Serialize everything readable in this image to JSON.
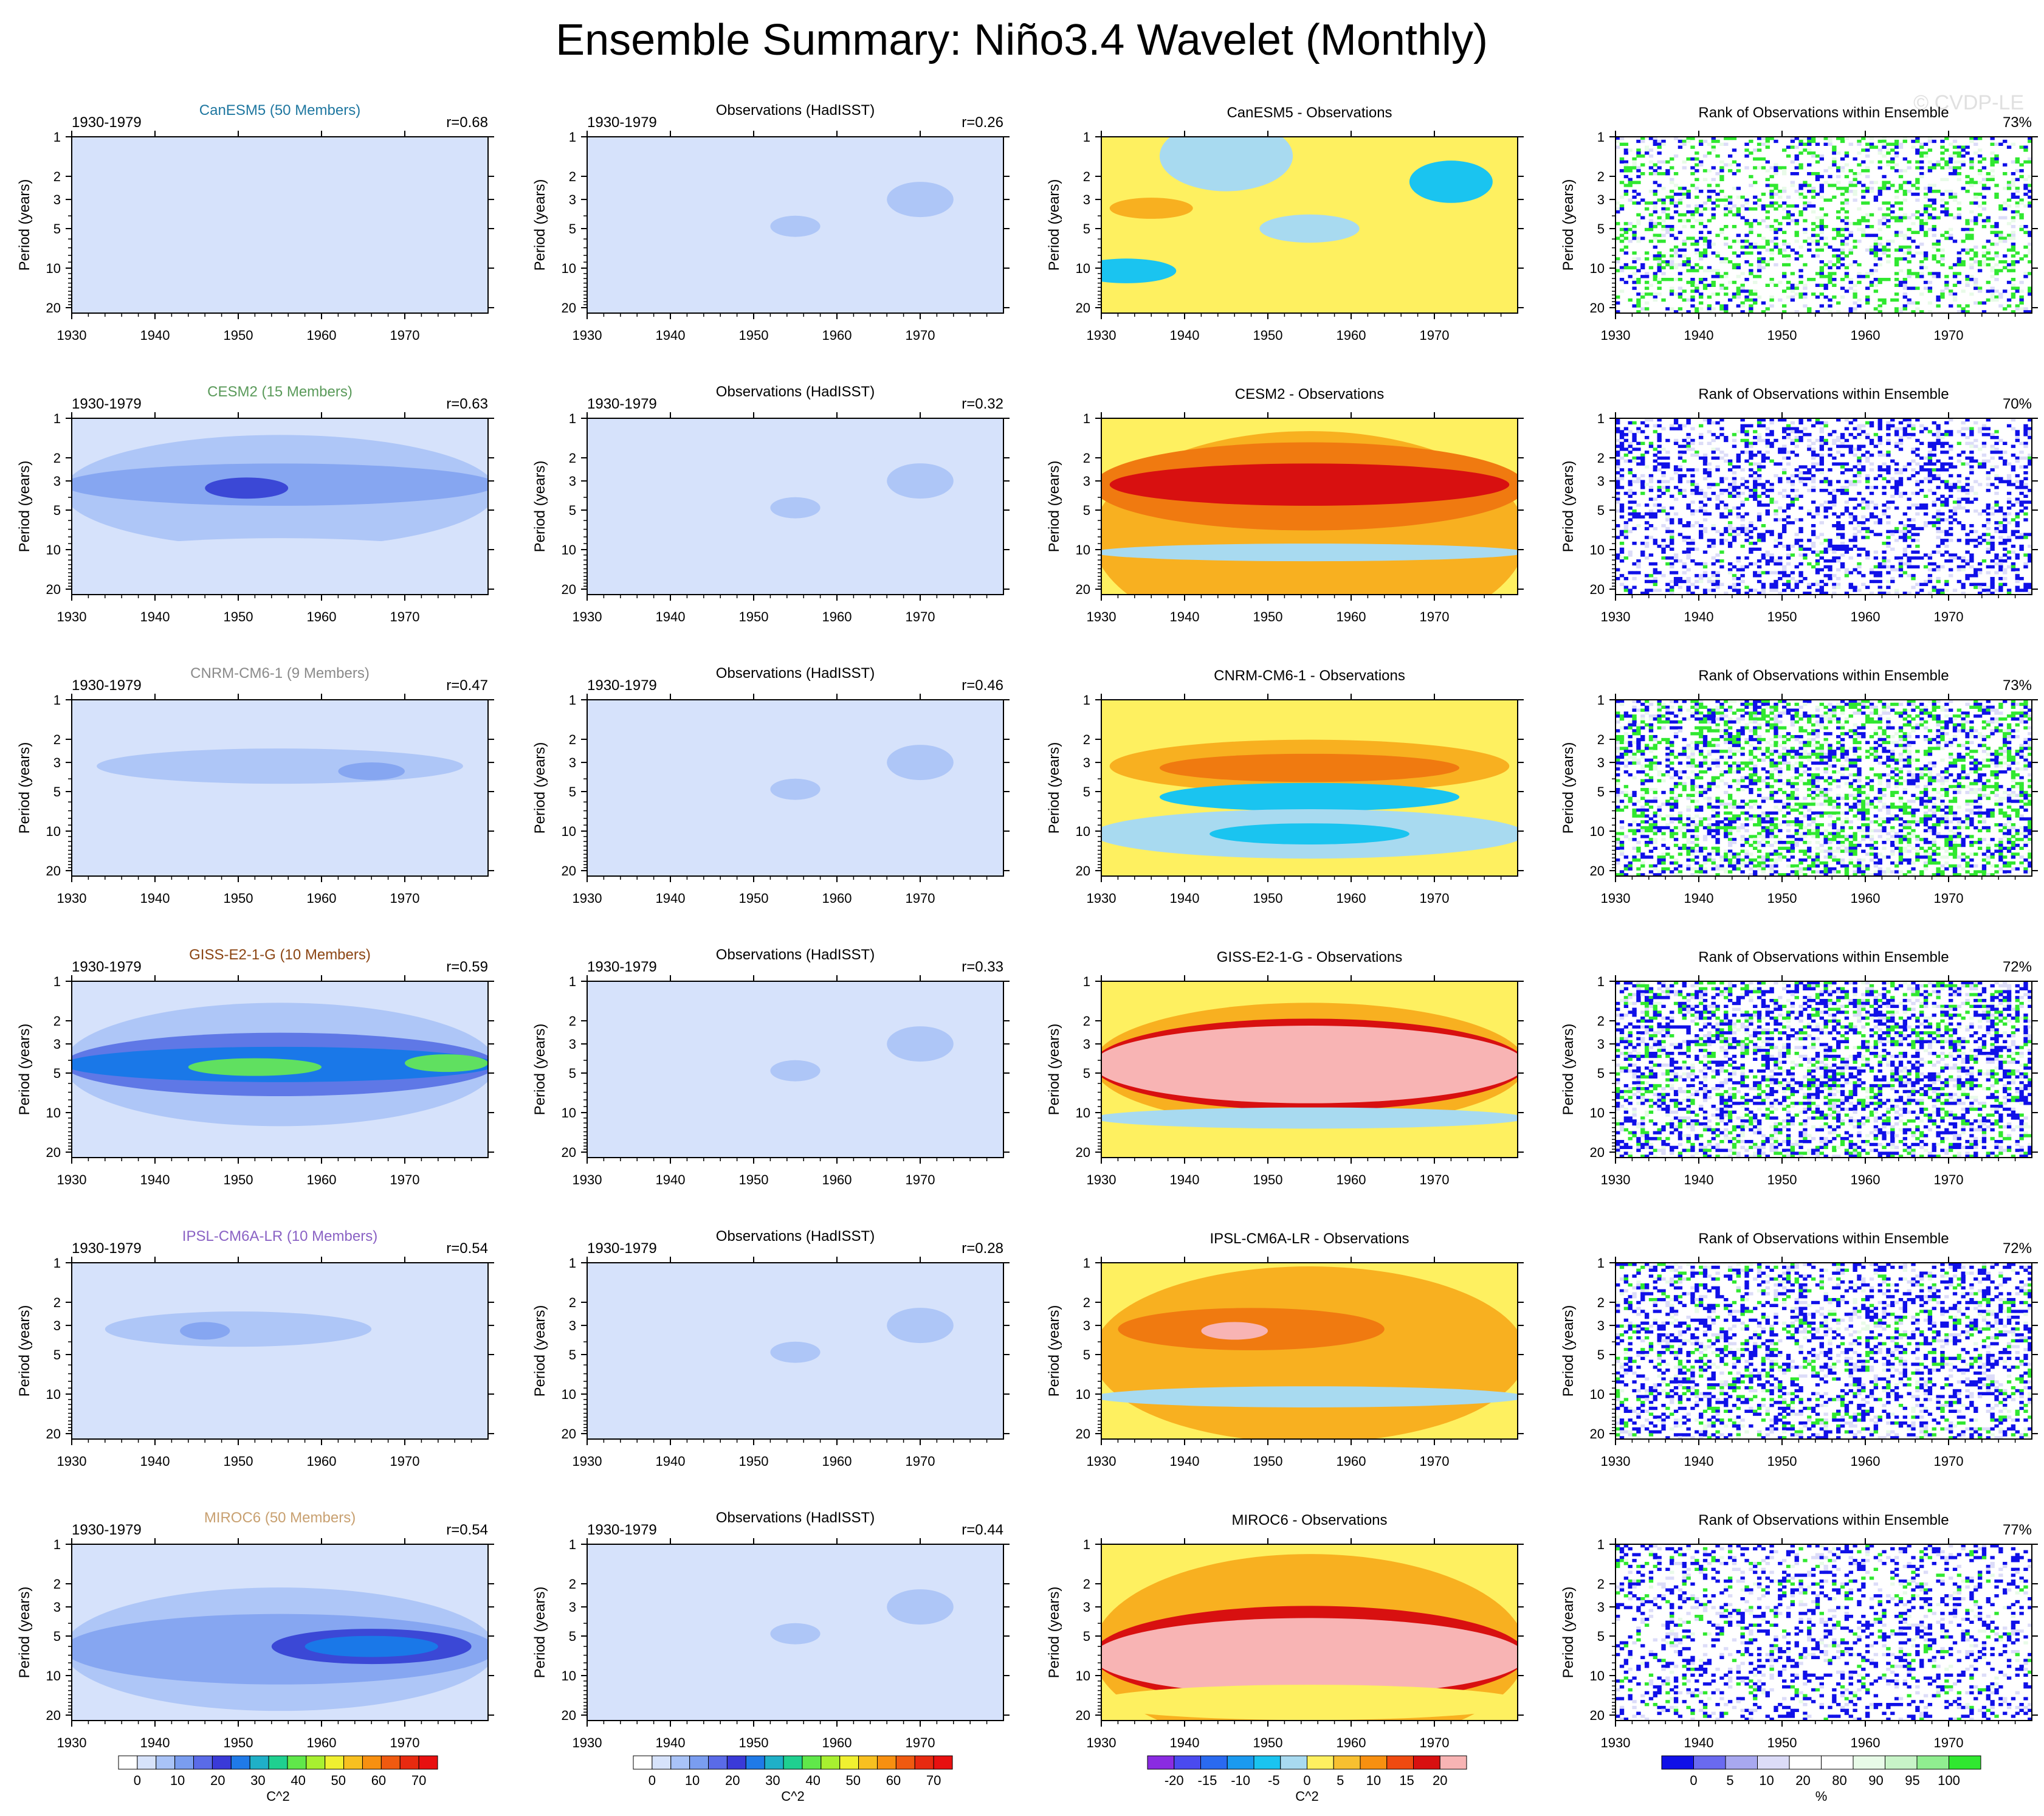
{
  "figure": {
    "title": "Ensemble Summary: Niño3.4 Wavelet (Monthly)",
    "watermark": "© CVDP-LE",
    "ylabel": "Period (years)",
    "period_ticks": [
      "1",
      "2",
      "3",
      "5",
      "10",
      "20"
    ],
    "x_ticks": [
      "1930",
      "1940",
      "1950",
      "1960",
      "1970"
    ]
  },
  "chart_data": {
    "type": "heatmap",
    "x_range": [
      1930,
      1980
    ],
    "y_range_period_years": [
      1,
      22
    ],
    "y_scale": "log (inverted)",
    "rows": [
      {
        "model": "CanESM5 (50 Members)",
        "model_color": "#1f77a0",
        "period": "1930-1979",
        "ens_r": "r=0.68",
        "obs_r": "r=0.26",
        "diff_title": "CanESM5 - Observations",
        "rank_pct": "73%",
        "ens_features": [
          {
            "center_year": 1955,
            "period": 4.5,
            "half_width_years": 26,
            "spread": 0.3,
            "level": 1
          },
          {
            "center_year": 1950,
            "period": 10.5,
            "half_width_years": 14,
            "spread": 0.06,
            "level": 1
          }
        ],
        "diff_features": [
          {
            "center_year": 1955,
            "period": 6,
            "half_width_years": 25,
            "spread": 0.38,
            "level": 1
          },
          {
            "center_year": 1955,
            "period": 5,
            "half_width_years": 6,
            "spread": 0.08,
            "level": -1
          },
          {
            "center_year": 1933,
            "period": 10.5,
            "half_width_years": 6,
            "spread": 0.07,
            "level": -2
          },
          {
            "center_year": 1972,
            "period": 2.2,
            "half_width_years": 5,
            "spread": 0.12,
            "level": -2
          },
          {
            "center_year": 1936,
            "period": 3.5,
            "half_width_years": 5,
            "spread": 0.06,
            "level": 2
          },
          {
            "center_year": 1945,
            "period": 1.4,
            "half_width_years": 8,
            "spread": 0.2,
            "level": -1
          }
        ],
        "rank_green_frac": 0.18,
        "rank_blue_frac": 0.12
      },
      {
        "model": "CESM2 (15 Members)",
        "model_color": "#5a9a5a",
        "period": "1930-1979",
        "ens_r": "r=0.63",
        "obs_r": "r=0.32",
        "diff_title": "CESM2 - Observations",
        "rank_pct": "70%",
        "ens_features": [
          {
            "center_year": 1955,
            "period": 3.6,
            "half_width_years": 26,
            "spread": 0.32,
            "level": 2
          },
          {
            "center_year": 1955,
            "period": 3.2,
            "half_width_years": 26,
            "spread": 0.12,
            "level": 3
          },
          {
            "center_year": 1951,
            "period": 3.4,
            "half_width_years": 5,
            "spread": 0.06,
            "level": 5
          },
          {
            "center_year": 1955,
            "period": 13,
            "half_width_years": 26,
            "spread": 0.15,
            "level": 1
          }
        ],
        "diff_features": [
          {
            "center_year": 1955,
            "period": 8,
            "half_width_years": 26,
            "spread": 0.6,
            "level": 2
          },
          {
            "center_year": 1955,
            "period": 3.3,
            "half_width_years": 26,
            "spread": 0.25,
            "level": 3
          },
          {
            "center_year": 1955,
            "period": 3.2,
            "half_width_years": 24,
            "spread": 0.12,
            "level": 4
          },
          {
            "center_year": 1955,
            "period": 10.5,
            "half_width_years": 26,
            "spread": 0.05,
            "level": -1
          }
        ],
        "rank_green_frac": 0.03,
        "rank_blue_frac": 0.3
      },
      {
        "model": "CNRM-CM6-1 (9 Members)",
        "model_color": "#8a8a8a",
        "period": "1930-1979",
        "ens_r": "r=0.47",
        "obs_r": "r=0.46",
        "diff_title": "CNRM-CM6-1 - Observations",
        "rank_pct": "73%",
        "ens_features": [
          {
            "center_year": 1955,
            "period": 3.4,
            "half_width_years": 26,
            "spread": 0.28,
            "level": 1
          },
          {
            "center_year": 1955,
            "period": 3.2,
            "half_width_years": 22,
            "spread": 0.1,
            "level": 2
          },
          {
            "center_year": 1966,
            "period": 3.5,
            "half_width_years": 4,
            "spread": 0.05,
            "level": 3
          }
        ],
        "diff_features": [
          {
            "center_year": 1955,
            "period": 3.2,
            "half_width_years": 24,
            "spread": 0.15,
            "level": 2
          },
          {
            "center_year": 1955,
            "period": 3.3,
            "half_width_years": 18,
            "spread": 0.08,
            "level": 3
          },
          {
            "center_year": 1955,
            "period": 5.5,
            "half_width_years": 18,
            "spread": 0.08,
            "level": -2
          },
          {
            "center_year": 1955,
            "period": 10.5,
            "half_width_years": 26,
            "spread": 0.14,
            "level": -1
          },
          {
            "center_year": 1955,
            "period": 10.5,
            "half_width_years": 12,
            "spread": 0.06,
            "level": -2
          }
        ],
        "rank_green_frac": 0.25,
        "rank_blue_frac": 0.22
      },
      {
        "model": "GISS-E2-1-G (10 Members)",
        "model_color": "#8b4513",
        "period": "1930-1979",
        "ens_r": "r=0.59",
        "obs_r": "r=0.33",
        "diff_title": "GISS-E2-1-G - Observations",
        "rank_pct": "72%",
        "ens_features": [
          {
            "center_year": 1955,
            "period": 4.3,
            "half_width_years": 26,
            "spread": 0.35,
            "level": 2
          },
          {
            "center_year": 1955,
            "period": 4.3,
            "half_width_years": 26,
            "spread": 0.18,
            "level": 4
          },
          {
            "center_year": 1955,
            "period": 4.3,
            "half_width_years": 26,
            "spread": 0.1,
            "level": 6
          },
          {
            "center_year": 1952,
            "period": 4.5,
            "half_width_years": 8,
            "spread": 0.05,
            "level": 8
          },
          {
            "center_year": 1975,
            "period": 4.2,
            "half_width_years": 5,
            "spread": 0.05,
            "level": 8
          }
        ],
        "diff_features": [
          {
            "center_year": 1955,
            "period": 4.3,
            "half_width_years": 26,
            "spread": 0.35,
            "level": 2
          },
          {
            "center_year": 1955,
            "period": 4.3,
            "half_width_years": 26,
            "spread": 0.26,
            "level": 4
          },
          {
            "center_year": 1955,
            "period": 4.3,
            "half_width_years": 26,
            "spread": 0.22,
            "level": 5
          },
          {
            "center_year": 1955,
            "period": 11,
            "half_width_years": 26,
            "spread": 0.06,
            "level": -1
          }
        ],
        "rank_green_frac": 0.15,
        "rank_blue_frac": 0.3
      },
      {
        "model": "IPSL-CM6A-LR (10 Members)",
        "model_color": "#8a62c4",
        "period": "1930-1979",
        "ens_r": "r=0.54",
        "obs_r": "r=0.28",
        "diff_title": "IPSL-CM6A-LR - Observations",
        "rank_pct": "72%",
        "ens_features": [
          {
            "center_year": 1955,
            "period": 3.2,
            "half_width_years": 26,
            "spread": 0.25,
            "level": 1
          },
          {
            "center_year": 1950,
            "period": 3.2,
            "half_width_years": 16,
            "spread": 0.1,
            "level": 2
          },
          {
            "center_year": 1946,
            "period": 3.3,
            "half_width_years": 3,
            "spread": 0.05,
            "level": 3
          }
        ],
        "diff_features": [
          {
            "center_year": 1955,
            "period": 5,
            "half_width_years": 26,
            "spread": 0.5,
            "level": 2
          },
          {
            "center_year": 1948,
            "period": 3.2,
            "half_width_years": 16,
            "spread": 0.12,
            "level": 3
          },
          {
            "center_year": 1946,
            "period": 3.3,
            "half_width_years": 4,
            "spread": 0.05,
            "level": 5
          },
          {
            "center_year": 1955,
            "period": 10.5,
            "half_width_years": 26,
            "spread": 0.06,
            "level": -1
          }
        ],
        "rank_green_frac": 0.1,
        "rank_blue_frac": 0.28
      },
      {
        "model": "MIROC6 (50 Members)",
        "model_color": "#c8a070",
        "period": "1930-1979",
        "ens_r": "r=0.54",
        "obs_r": "r=0.44",
        "diff_title": "MIROC6 - Observations",
        "rank_pct": "77%",
        "ens_features": [
          {
            "center_year": 1955,
            "period": 6.3,
            "half_width_years": 26,
            "spread": 0.35,
            "level": 2
          },
          {
            "center_year": 1955,
            "period": 6.3,
            "half_width_years": 26,
            "spread": 0.2,
            "level": 3
          },
          {
            "center_year": 1966,
            "period": 6,
            "half_width_years": 12,
            "spread": 0.1,
            "level": 5
          },
          {
            "center_year": 1966,
            "period": 6,
            "half_width_years": 8,
            "spread": 0.06,
            "level": 6
          }
        ],
        "diff_features": [
          {
            "center_year": 1955,
            "period": 6.5,
            "half_width_years": 26,
            "spread": 0.55,
            "level": 2
          },
          {
            "center_year": 1955,
            "period": 7,
            "half_width_years": 26,
            "spread": 0.28,
            "level": 4
          },
          {
            "center_year": 1955,
            "period": 7.2,
            "half_width_years": 26,
            "spread": 0.22,
            "level": 5
          },
          {
            "center_year": 1955,
            "period": 16,
            "half_width_years": 26,
            "spread": 0.1,
            "level": 1
          }
        ],
        "rank_green_frac": 0.05,
        "rank_blue_frac": 0.22
      }
    ],
    "observations": {
      "title": "Observations (HadISST)",
      "features": [
        {
          "center_year": 1950,
          "period": 5,
          "half_width_years": 12,
          "spread": 0.12,
          "level": 1
        },
        {
          "center_year": 1955,
          "period": 4.8,
          "half_width_years": 3,
          "spread": 0.06,
          "level": 2
        },
        {
          "center_year": 1934,
          "period": 10.5,
          "half_width_years": 8,
          "spread": 0.05,
          "level": 1
        },
        {
          "center_year": 1970,
          "period": 2.6,
          "half_width_years": 6,
          "spread": 0.2,
          "level": 1
        },
        {
          "center_year": 1970,
          "period": 3,
          "half_width_years": 4,
          "spread": 0.1,
          "level": 2
        },
        {
          "center_year": 1975,
          "period": 10.5,
          "half_width_years": 5,
          "spread": 0.05,
          "level": 1
        }
      ]
    },
    "rank_title": "Rank of Observations within Ensemble",
    "colorbars": {
      "power": {
        "ticks": [
          "0",
          "10",
          "20",
          "30",
          "40",
          "50",
          "60",
          "70"
        ],
        "label": "C^2",
        "colors": [
          "#ffffff",
          "#d7e3fb",
          "#a9c3f7",
          "#7a9df0",
          "#5a6be8",
          "#3a3ad8",
          "#1f7ae8",
          "#1fb0c8",
          "#1fd090",
          "#60e84a",
          "#a8f030",
          "#f0f030",
          "#f8c020",
          "#f89010",
          "#f05a10",
          "#e82a10",
          "#e81010"
        ]
      },
      "diff": {
        "ticks": [
          "-20",
          "-15",
          "-10",
          "-5",
          "0",
          "5",
          "10",
          "15",
          "20"
        ],
        "label": "C^2",
        "colors": [
          "#8a2be2",
          "#4a4af0",
          "#2a6af0",
          "#1a9af0",
          "#1ac4f0",
          "#a8daf0",
          "#fef060",
          "#f8c030",
          "#f89010",
          "#f04a10",
          "#d81010",
          "#f8b4b4"
        ]
      },
      "rank": {
        "ticks": [
          "0",
          "5",
          "10",
          "20",
          "80",
          "90",
          "95",
          "100"
        ],
        "label": "%",
        "colors": [
          "#1010e8",
          "#6a6af0",
          "#a8a8f0",
          "#dcdcf8",
          "#ffffff",
          "#ffffff",
          "#e8fbe8",
          "#c8f4c8",
          "#90ee90",
          "#30e830"
        ]
      }
    }
  }
}
